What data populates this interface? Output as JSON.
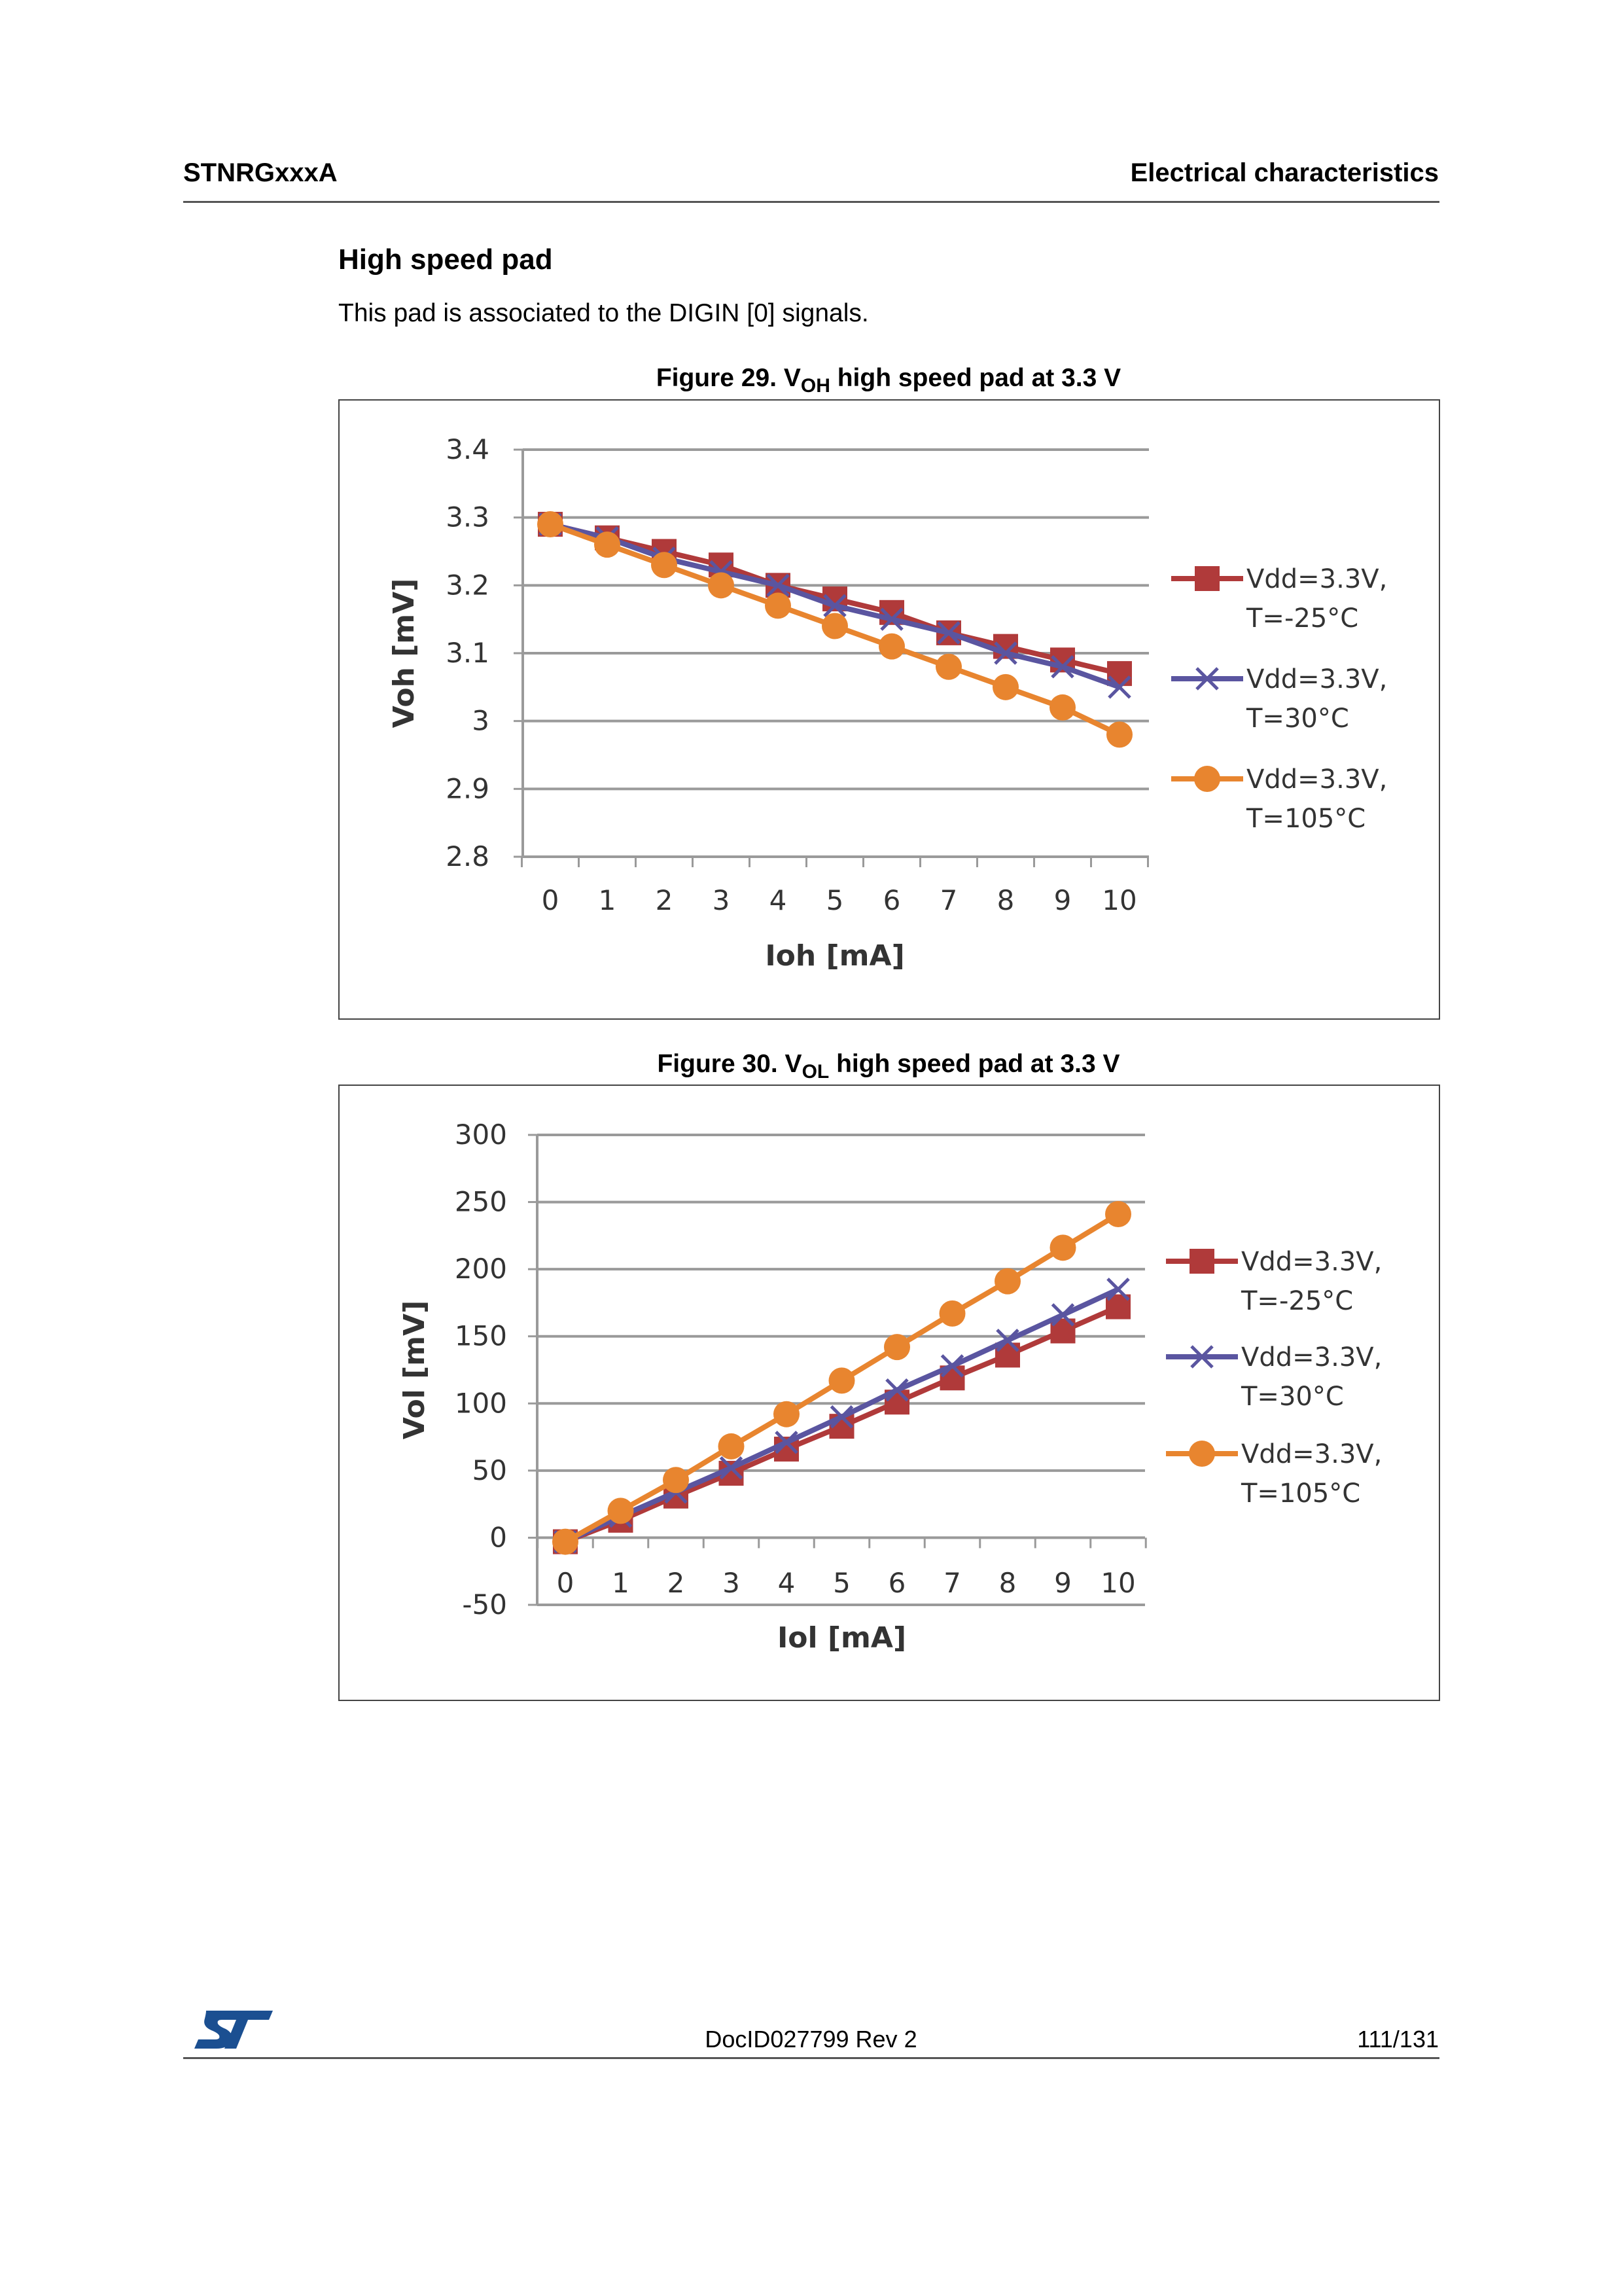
{
  "header": {
    "left": "STNRGxxxA",
    "right": "Electrical characteristics"
  },
  "section": {
    "title": "High speed pad",
    "text": "This pad is associated to the DIGIN [0] signals."
  },
  "figures": [
    {
      "caption_pre": "Figure 29. V",
      "caption_sub": "OH",
      "caption_post": " high speed pad at 3.3 V"
    },
    {
      "caption_pre": "Figure 30. V",
      "caption_sub": "OL",
      "caption_post": " high speed pad at 3.3 V"
    }
  ],
  "footer": {
    "doc_id": "DocID027799 Rev 2",
    "page": "111/131",
    "logo_text": "ST"
  },
  "chart_data": [
    {
      "type": "line",
      "title": "VOH high speed pad at 3.3 V",
      "xlabel": "Ioh [mA]",
      "ylabel": "Voh [mV]",
      "x": [
        0,
        1,
        2,
        3,
        4,
        5,
        6,
        7,
        8,
        9,
        10
      ],
      "x_tick_labels": [
        "0",
        "1",
        "2",
        "3",
        "4",
        "5",
        "6",
        "7",
        "8",
        "9",
        "10"
      ],
      "ylim": [
        2.8,
        3.4
      ],
      "y_ticks": [
        2.8,
        2.9,
        3,
        3.1,
        3.2,
        3.3,
        3.4
      ],
      "y_tick_labels": [
        "2.8",
        "2.9",
        "3",
        "3.1",
        "3.2",
        "3.3",
        "3.4"
      ],
      "grid": true,
      "legend": "right",
      "series": [
        {
          "name": "Vdd=3.3V,",
          "name2": "T=-25°C",
          "marker": "square",
          "color": "#b03a3a",
          "values": [
            3.29,
            3.27,
            3.25,
            3.23,
            3.2,
            3.18,
            3.16,
            3.13,
            3.11,
            3.09,
            3.07
          ]
        },
        {
          "name": "Vdd=3.3V,",
          "name2": "T=30°C",
          "marker": "x",
          "color": "#5a55a0",
          "values": [
            3.29,
            3.27,
            3.24,
            3.22,
            3.2,
            3.17,
            3.15,
            3.13,
            3.1,
            3.08,
            3.05
          ]
        },
        {
          "name": "Vdd=3.3V,",
          "name2": "T=105°C",
          "marker": "circle",
          "color": "#e8852f",
          "values": [
            3.29,
            3.26,
            3.23,
            3.2,
            3.17,
            3.14,
            3.11,
            3.08,
            3.05,
            3.02,
            2.98
          ]
        }
      ]
    },
    {
      "type": "line",
      "title": "VOL high speed pad at 3.3 V",
      "xlabel": "Iol [mA]",
      "ylabel": "Vol [mV]",
      "x": [
        0,
        1,
        2,
        3,
        4,
        5,
        6,
        7,
        8,
        9,
        10
      ],
      "x_tick_labels": [
        "0",
        "1",
        "2",
        "3",
        "4",
        "5",
        "6",
        "7",
        "8",
        "9",
        "10"
      ],
      "ylim": [
        -50,
        300
      ],
      "y_ticks": [
        -50,
        0,
        50,
        100,
        150,
        200,
        250,
        300
      ],
      "y_tick_labels": [
        "-50",
        "0",
        "50",
        "100",
        "150",
        "200",
        "250",
        "300"
      ],
      "grid": true,
      "legend": "right",
      "series": [
        {
          "name": "Vdd=3.3V,",
          "name2": "T=-25°C",
          "marker": "square",
          "color": "#b03a3a",
          "values": [
            -3,
            13,
            31,
            48,
            66,
            83,
            101,
            119,
            136,
            154,
            172
          ]
        },
        {
          "name": "Vdd=3.3V,",
          "name2": "T=30°C",
          "marker": "x",
          "color": "#5a55a0",
          "values": [
            -3,
            16,
            34,
            52,
            71,
            90,
            110,
            128,
            147,
            166,
            185
          ]
        },
        {
          "name": "Vdd=3.3V,",
          "name2": "T=105°C",
          "marker": "circle",
          "color": "#e8852f",
          "values": [
            -3,
            20,
            43,
            68,
            92,
            117,
            142,
            167,
            191,
            216,
            241
          ]
        }
      ]
    }
  ]
}
